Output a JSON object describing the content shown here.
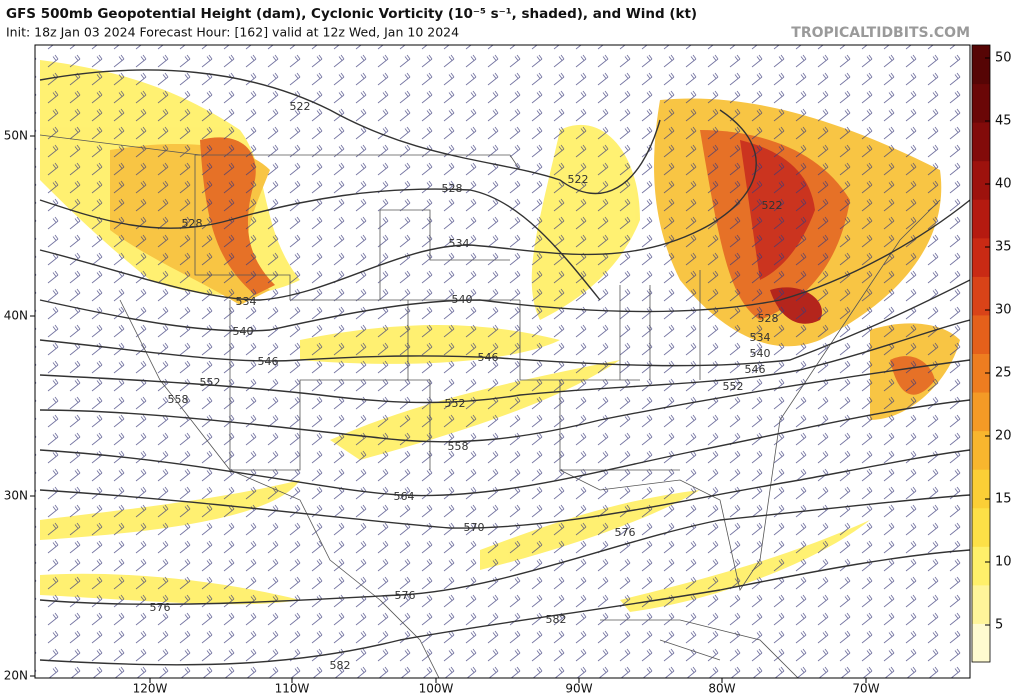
{
  "header": {
    "title": "GFS 500mb Geopotential Height (dam), Cyclonic Vorticity (10⁻⁵ s⁻¹, shaded), and Wind (kt)",
    "subtitle": "Init: 18z Jan 03 2024   Forecast Hour: [162]   valid at 12z Wed, Jan 10 2024",
    "credit": "TROPICALTIDBITS.COM"
  },
  "colorbar": {
    "ticks": [
      5,
      10,
      15,
      20,
      25,
      30,
      35,
      40,
      45,
      50
    ]
  },
  "axes": {
    "lat_labels": [
      "20N",
      "30N",
      "40N",
      "50N"
    ],
    "lon_labels": [
      "120W",
      "110W",
      "100W",
      "90W",
      "80W",
      "70W"
    ]
  },
  "contour_labels": [
    "522",
    "528",
    "528",
    "534",
    "534",
    "540",
    "540",
    "546",
    "546",
    "552",
    "552",
    "558",
    "558",
    "564",
    "570",
    "576",
    "576",
    "576",
    "582",
    "582",
    "522",
    "522",
    "528",
    "534",
    "540",
    "546",
    "552"
  ]
}
